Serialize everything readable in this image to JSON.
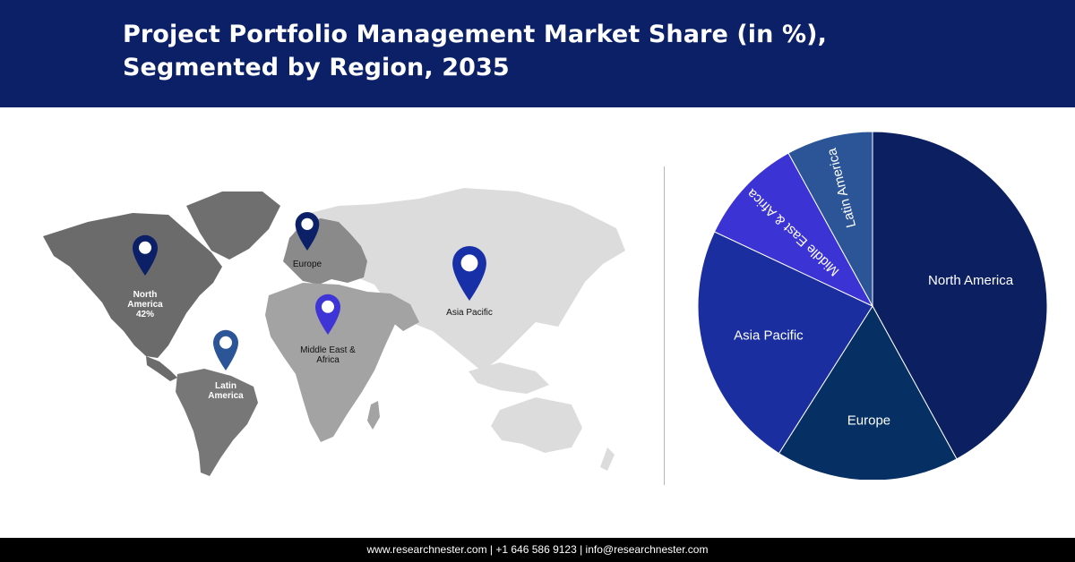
{
  "header": {
    "title_line1": "Project Portfolio Management Market Share (in %),",
    "title_line2": "Segmented by Region, 2035"
  },
  "map": {
    "markers": [
      {
        "name": "North America",
        "label_lines": [
          "North",
          "America",
          "42%"
        ],
        "color": "#0c2068"
      },
      {
        "name": "Europe",
        "label_lines": [
          "Europe"
        ],
        "color": "#0c2068"
      },
      {
        "name": "Asia Pacific",
        "label_lines": [
          "Asia Pacific"
        ],
        "color": "#1730a8"
      },
      {
        "name": "Middle East & Africa",
        "label_lines": [
          "Middle East &",
          "Africa"
        ],
        "color": "#3f35d6"
      },
      {
        "name": "Latin America",
        "label_lines": [
          "Latin",
          "America"
        ],
        "color": "#2c5598"
      }
    ]
  },
  "chart_data": {
    "type": "pie",
    "title": "Project Portfolio Management Market Share (in %), Segmented by Region, 2035",
    "slices": [
      {
        "label": "North America",
        "value": 42,
        "color": "#0c2061"
      },
      {
        "label": "Europe",
        "value": 17,
        "color": "#063063"
      },
      {
        "label": "Asia Pacific",
        "value": 23,
        "color": "#1a2ea0"
      },
      {
        "label": "Middle East & Africa",
        "value": 10,
        "color": "#3b33d4"
      },
      {
        "label": "Latin America",
        "value": 8,
        "color": "#2c5597"
      }
    ]
  },
  "footer": {
    "text": "www.researchnester.com  | +1 646 586 9123 | info@researchnester.com"
  }
}
